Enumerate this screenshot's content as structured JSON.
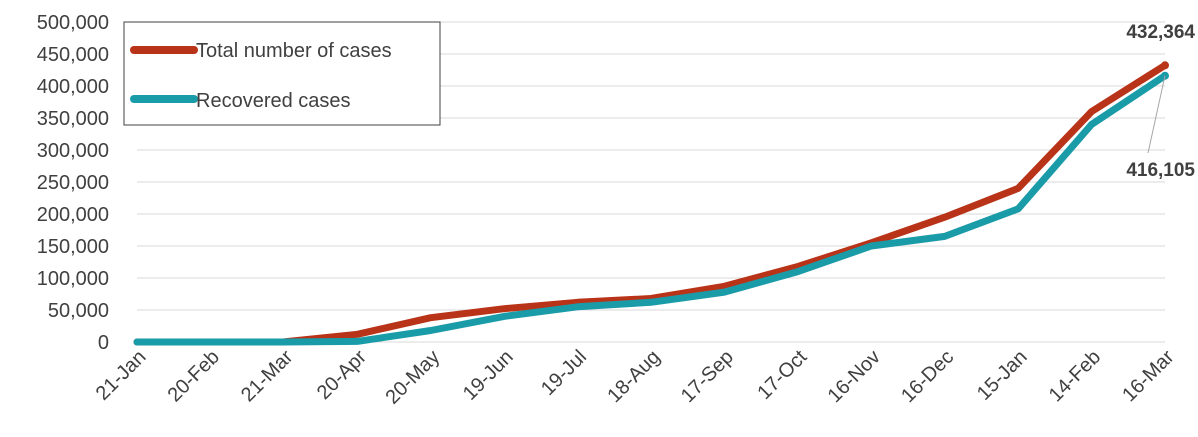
{
  "colors": {
    "total_cases": "#B83318",
    "recovered_cases": "#1A9BA8",
    "grid": "#D9D9D9",
    "text": "#404040"
  },
  "chart_data": {
    "type": "line",
    "title": "",
    "xlabel": "",
    "ylabel": "",
    "ylim": [
      0,
      500000
    ],
    "y_ticks": [
      "0",
      "50,000",
      "100,000",
      "150,000",
      "200,000",
      "250,000",
      "300,000",
      "350,000",
      "400,000",
      "450,000",
      "500,000"
    ],
    "x_tick_labels": [
      "21-Jan",
      "20-Feb",
      "21-Mar",
      "20-Apr",
      "20-May",
      "19-Jun",
      "19-Jul",
      "18-Aug",
      "17-Sep",
      "17-Oct",
      "16-Nov",
      "16-Dec",
      "15-Jan",
      "14-Feb",
      "16-Mar"
    ],
    "grid": true,
    "legend_position": "top-left",
    "x": [
      "21-Jan",
      "20-Feb",
      "21-Mar",
      "20-Apr",
      "20-May",
      "19-Jun",
      "19-Jul",
      "18-Aug",
      "17-Sep",
      "17-Oct",
      "16-Nov",
      "16-Dec",
      "15-Jan",
      "14-Feb",
      "16-Mar"
    ],
    "series": [
      {
        "name": "Total number of cases",
        "color": "#B83318",
        "values": [
          0,
          0,
          200,
          12000,
          38000,
          52000,
          62000,
          68000,
          87000,
          118000,
          155000,
          195000,
          240000,
          360000,
          432364
        ]
      },
      {
        "name": "Recovered cases",
        "color": "#1A9BA8",
        "values": [
          0,
          0,
          0,
          1000,
          18000,
          40000,
          55000,
          62000,
          78000,
          110000,
          150000,
          165000,
          208000,
          340000,
          416105
        ]
      }
    ],
    "annotations": [
      {
        "series": "Total number of cases",
        "text": "432,364"
      },
      {
        "series": "Recovered cases",
        "text": "416,105"
      }
    ]
  }
}
